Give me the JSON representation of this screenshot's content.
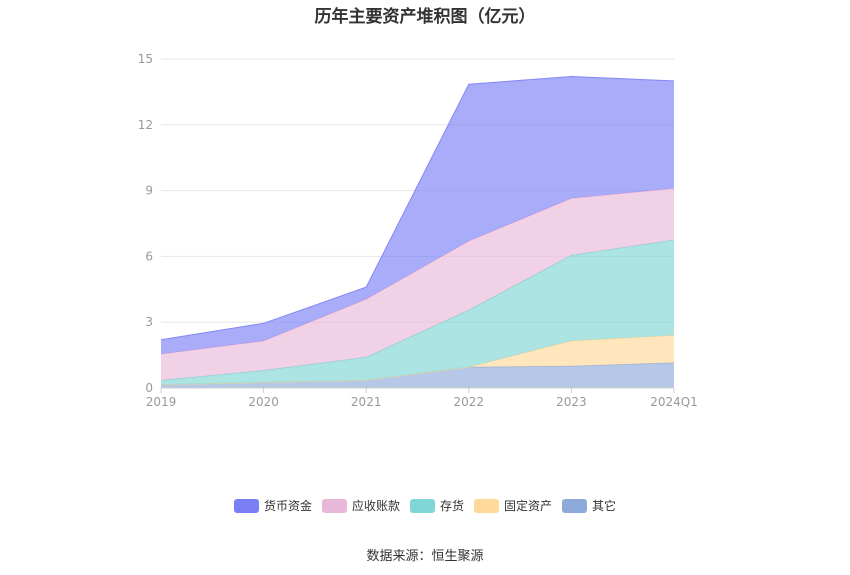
{
  "chart_data": {
    "type": "area",
    "stacked": true,
    "title": "历年主要资产堆积图（亿元）",
    "categories": [
      "2019",
      "2020",
      "2021",
      "2022",
      "2023",
      "2024Q1"
    ],
    "ylim": [
      0,
      15
    ],
    "yticks": [
      0,
      3,
      6,
      9,
      12,
      15
    ],
    "grid": true,
    "legend_position": "bottom",
    "series": [
      {
        "name": "其它",
        "color": "#8eaadb",
        "values": [
          0.15,
          0.25,
          0.35,
          0.95,
          1.0,
          1.15
        ]
      },
      {
        "name": "固定资产",
        "color": "#ffd99a",
        "values": [
          0.0,
          0.0,
          0.0,
          0.0,
          1.15,
          1.25
        ]
      },
      {
        "name": "存货",
        "color": "#80d6d6",
        "values": [
          0.2,
          0.55,
          1.05,
          2.6,
          3.9,
          4.35
        ]
      },
      {
        "name": "应收账款",
        "color": "#e8b8d8",
        "values": [
          1.2,
          1.35,
          2.65,
          3.15,
          2.6,
          2.35
        ]
      },
      {
        "name": "货币资金",
        "color": "#7b7ff5",
        "values": [
          0.65,
          0.8,
          0.55,
          7.15,
          5.55,
          4.9
        ]
      }
    ]
  },
  "legend_order": [
    "货币资金",
    "应收账款",
    "存货",
    "固定资产",
    "其它"
  ],
  "source_text": "数据来源：恒生聚源"
}
